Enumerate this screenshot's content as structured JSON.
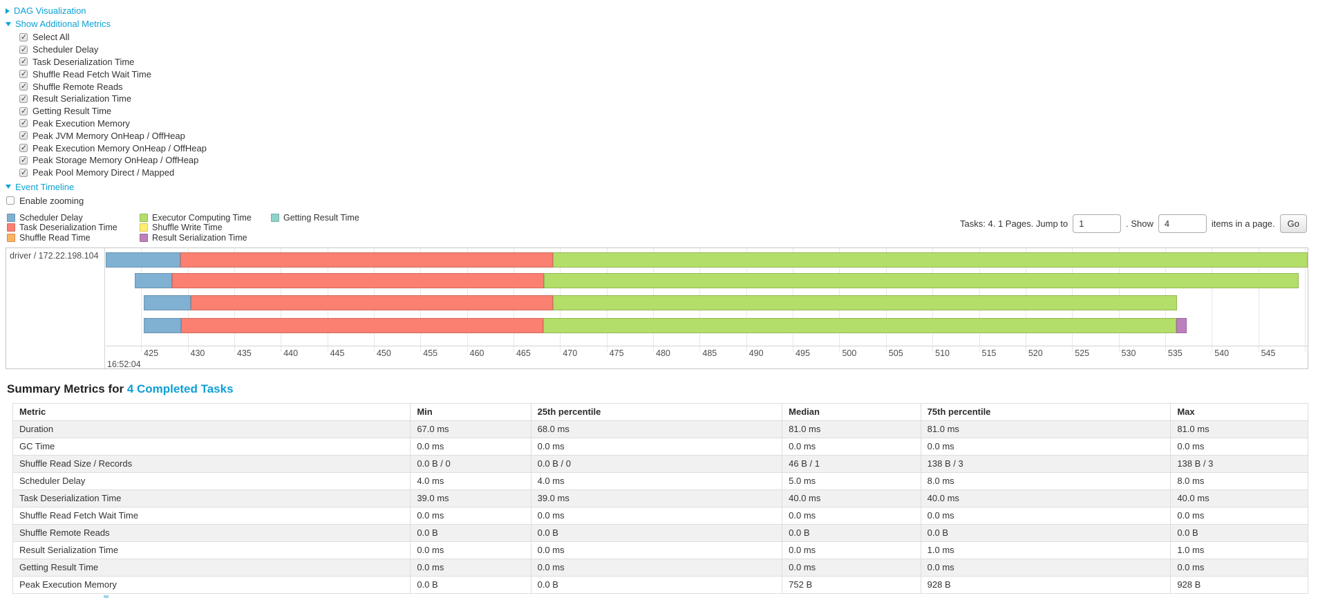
{
  "colors": {
    "link": "#0ba2d4",
    "scheduler_delay": "#80B1D3",
    "scheduler_delay_stroke": "#6B94B0",
    "task_deserialization": "#FB8072",
    "task_deserialization_stroke": "#D26B5F",
    "shuffle_read": "#FDB462",
    "shuffle_read_stroke": "#D38A51",
    "executor_computing": "#B3DE69",
    "executor_computing_stroke": "#95B957",
    "shuffle_write": "#FFED6F",
    "shuffle_write_stroke": "#D5C65C",
    "result_serialization": "#BC80BD",
    "result_serialization_stroke": "#9D6B9E",
    "getting_result": "#8DD3C7",
    "getting_result_stroke": "#75B0A6"
  },
  "controls": {
    "dag_label": "DAG Visualization",
    "metrics_label": "Show Additional Metrics",
    "metric_items": [
      "Select All",
      "Scheduler Delay",
      "Task Deserialization Time",
      "Shuffle Read Fetch Wait Time",
      "Shuffle Remote Reads",
      "Result Serialization Time",
      "Getting Result Time",
      "Peak Execution Memory",
      "Peak JVM Memory OnHeap / OffHeap",
      "Peak Execution Memory OnHeap / OffHeap",
      "Peak Storage Memory OnHeap / OffHeap",
      "Peak Pool Memory Direct / Mapped"
    ],
    "event_timeline_label": "Event Timeline",
    "enable_zooming_label": "Enable zooming"
  },
  "legend": {
    "columns": [
      [
        {
          "label": "Scheduler Delay",
          "key": "scheduler_delay"
        },
        {
          "label": "Task Deserialization Time",
          "key": "task_deserialization"
        },
        {
          "label": "Shuffle Read Time",
          "key": "shuffle_read"
        }
      ],
      [
        {
          "label": "Executor Computing Time",
          "key": "executor_computing"
        },
        {
          "label": "Shuffle Write Time",
          "key": "shuffle_write"
        },
        {
          "label": "Result Serialization Time",
          "key": "result_serialization"
        }
      ],
      [
        {
          "label": "Getting Result Time",
          "key": "getting_result"
        }
      ]
    ]
  },
  "pagination": {
    "summary_text": "Tasks: 4. 1 Pages. Jump to",
    "jump_value": "1",
    "between_text": ". Show",
    "show_value": "4",
    "after_text": "items in a page.",
    "go_label": "Go"
  },
  "chart_data": {
    "type": "timeline-gantt",
    "title": "Event Timeline",
    "group_label": "driver / 172.22.198.104",
    "x_domain": [
      421.2,
      550.3
    ],
    "tick_start": 425,
    "tick_end": 550,
    "tick_step": 5,
    "major_tick_label": "16:52:04",
    "x_unit": "ms within 16:52:04",
    "row_tops": [
      6,
      36,
      68,
      101
    ],
    "bars": [
      {
        "task": "task-0",
        "segments": [
          {
            "name": "scheduler_delay",
            "start": 421.2,
            "end": 429.2
          },
          {
            "name": "task_deserialization",
            "start": 429.2,
            "end": 469.2
          },
          {
            "name": "executor_computing",
            "start": 469.2,
            "end": 550.3
          }
        ]
      },
      {
        "task": "task-1",
        "segments": [
          {
            "name": "scheduler_delay",
            "start": 424.3,
            "end": 428.3
          },
          {
            "name": "task_deserialization",
            "start": 428.3,
            "end": 468.3
          },
          {
            "name": "executor_computing",
            "start": 468.3,
            "end": 549.3
          }
        ]
      },
      {
        "task": "task-2",
        "segments": [
          {
            "name": "scheduler_delay",
            "start": 425.3,
            "end": 430.3
          },
          {
            "name": "task_deserialization",
            "start": 430.3,
            "end": 469.2
          },
          {
            "name": "executor_computing",
            "start": 469.2,
            "end": 536.3
          }
        ]
      },
      {
        "task": "task-3",
        "segments": [
          {
            "name": "scheduler_delay",
            "start": 425.3,
            "end": 429.3
          },
          {
            "name": "task_deserialization",
            "start": 429.3,
            "end": 468.2
          },
          {
            "name": "executor_computing",
            "start": 468.2,
            "end": 536.2
          },
          {
            "name": "result_serialization",
            "start": 536.2,
            "end": 537.3
          }
        ]
      }
    ]
  },
  "summary": {
    "heading_prefix": "Summary Metrics for ",
    "heading_link": "4 Completed Tasks",
    "columns": [
      "Metric",
      "Min",
      "25th percentile",
      "Median",
      "75th percentile",
      "Max"
    ],
    "col_widths_pct": [
      30.7,
      9.3,
      19.4,
      10.7,
      19.3,
      10.6
    ],
    "rows": [
      {
        "metric": "Duration",
        "values": [
          "67.0 ms",
          "68.0 ms",
          "81.0 ms",
          "81.0 ms",
          "81.0 ms"
        ]
      },
      {
        "metric": "GC Time",
        "values": [
          "0.0 ms",
          "0.0 ms",
          "0.0 ms",
          "0.0 ms",
          "0.0 ms"
        ]
      },
      {
        "metric": "Shuffle Read Size / Records",
        "values": [
          "0.0 B / 0",
          "0.0 B / 0",
          "46 B / 1",
          "138 B / 3",
          "138 B / 3"
        ]
      },
      {
        "metric": "Scheduler Delay",
        "values": [
          "4.0 ms",
          "4.0 ms",
          "5.0 ms",
          "8.0 ms",
          "8.0 ms"
        ]
      },
      {
        "metric": "Task Deserialization Time",
        "values": [
          "39.0 ms",
          "39.0 ms",
          "40.0 ms",
          "40.0 ms",
          "40.0 ms"
        ]
      },
      {
        "metric": "Shuffle Read Fetch Wait Time",
        "values": [
          "0.0 ms",
          "0.0 ms",
          "0.0 ms",
          "0.0 ms",
          "0.0 ms"
        ]
      },
      {
        "metric": "Shuffle Remote Reads",
        "values": [
          "0.0 B",
          "0.0 B",
          "0.0 B",
          "0.0 B",
          "0.0 B"
        ]
      },
      {
        "metric": "Result Serialization Time",
        "values": [
          "0.0 ms",
          "0.0 ms",
          "0.0 ms",
          "1.0 ms",
          "1.0 ms"
        ]
      },
      {
        "metric": "Getting Result Time",
        "values": [
          "0.0 ms",
          "0.0 ms",
          "0.0 ms",
          "0.0 ms",
          "0.0 ms"
        ]
      },
      {
        "metric": "Peak Execution Memory",
        "values": [
          "0.0 B",
          "0.0 B",
          "752 B",
          "928 B",
          "928 B"
        ]
      }
    ]
  }
}
